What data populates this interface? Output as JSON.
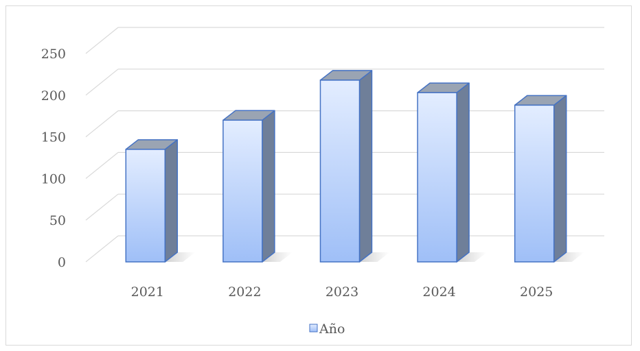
{
  "chart_data": {
    "type": "bar",
    "categories": [
      "2021",
      "2022",
      "2023",
      "2024",
      "2025"
    ],
    "series": [
      {
        "name": "Año",
        "values": [
          135,
          170,
          218,
          203,
          188
        ]
      }
    ],
    "title": "",
    "xlabel": "",
    "ylabel": "",
    "ylim": [
      0,
      250
    ],
    "yticks": [
      "0",
      "50",
      "100",
      "150",
      "200",
      "250"
    ],
    "grid": true,
    "legend": "bottom",
    "colors": {
      "bar_front_top": "#e3edff",
      "bar_front_bottom": "#9fbff7",
      "bar_side": "#6f7f99",
      "bar_top": "#9aa4b3",
      "bar_stroke": "#4472c4",
      "grid": "#d9d9d9"
    }
  }
}
